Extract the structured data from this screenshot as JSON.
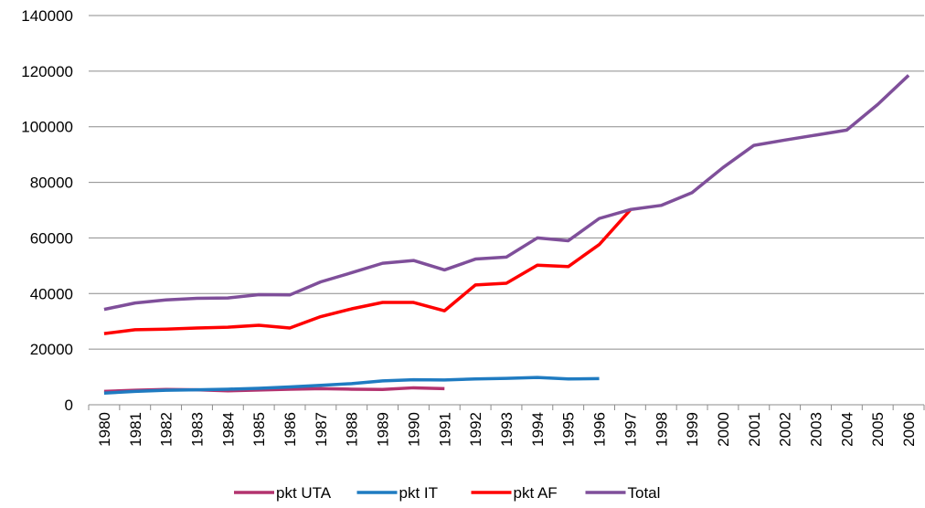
{
  "chart_data": {
    "type": "line",
    "categories": [
      "1980",
      "1981",
      "1982",
      "1983",
      "1984",
      "1985",
      "1986",
      "1987",
      "1988",
      "1989",
      "1990",
      "1991",
      "1992",
      "1993",
      "1994",
      "1995",
      "1996",
      "1997",
      "1998",
      "1999",
      "2000",
      "2001",
      "2002",
      "2003",
      "2004",
      "2005",
      "2006"
    ],
    "series": [
      {
        "name": "pkt UTA",
        "color": "#b3336f",
        "values": [
          4800,
          5200,
          5500,
          5400,
          5000,
          5300,
          5600,
          5800,
          5600,
          5500,
          6100,
          5800,
          null,
          null,
          null,
          null,
          null,
          null,
          null,
          null,
          null,
          null,
          null,
          null,
          null,
          null,
          null
        ]
      },
      {
        "name": "pkt IT",
        "color": "#1f7bc1",
        "values": [
          4200,
          4800,
          5200,
          5400,
          5600,
          5900,
          6400,
          7000,
          7600,
          8600,
          9000,
          8900,
          9300,
          9500,
          9800,
          9300,
          9400,
          null,
          null,
          null,
          null,
          null,
          null,
          null,
          null,
          null,
          null
        ]
      },
      {
        "name": "pkt AF",
        "color": "#ff0000",
        "values": [
          25600,
          27000,
          27200,
          27600,
          27900,
          28600,
          27600,
          31700,
          34500,
          36800,
          36800,
          33800,
          43100,
          43700,
          50200,
          49700,
          57600,
          70000,
          null,
          null,
          null,
          null,
          null,
          null,
          null,
          null,
          null
        ]
      },
      {
        "name": "Total",
        "color": "#7f4f9a",
        "values": [
          34300,
          36600,
          37700,
          38300,
          38400,
          39600,
          39500,
          44200,
          47500,
          50900,
          51900,
          48500,
          52400,
          53100,
          60000,
          59000,
          67000,
          70200,
          71700,
          76300,
          85300,
          93300,
          95200,
          97000,
          98800,
          108000,
          118500
        ]
      }
    ],
    "ylim": [
      0,
      140000
    ],
    "yticks": [
      0,
      20000,
      40000,
      60000,
      80000,
      100000,
      120000,
      140000
    ],
    "grid": true,
    "legend": "bottom"
  }
}
